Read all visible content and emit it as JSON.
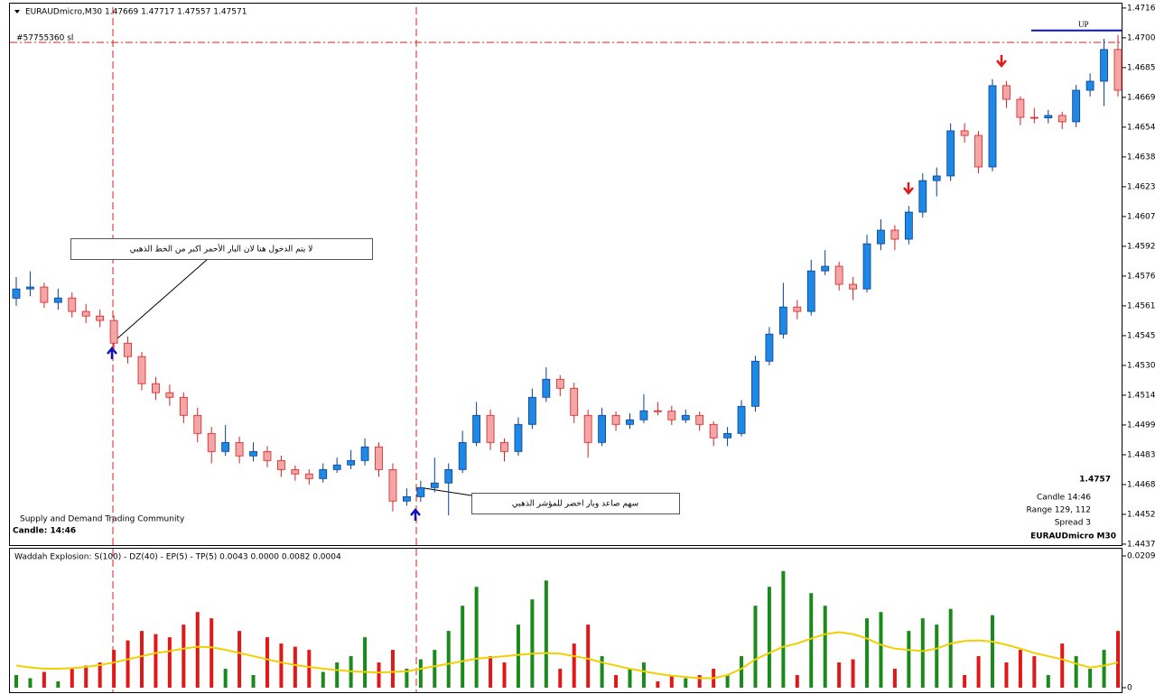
{
  "chart_data": {
    "type": "candlestick",
    "header": "EURAUDmicro,M30  1.47669 1.47717 1.47557 1.47571",
    "order_label": "#57755360 sl",
    "signal_text": "UP",
    "annotations": [
      "لا يتم الدخول هنا لان البار الأحمر اكبر من الخط الذهبي",
      "سهم صاعد وبار اخضر للمؤشر الذهبي"
    ],
    "watermark": "Supply and Demand Trading Community",
    "candle_timer": "Candle:  14:46",
    "info": {
      "price": "1.4757",
      "candle": "Candle  14:46",
      "range": "Range   129, 112",
      "spread": "Spread  3",
      "symbol": "EURAUDmicro   M30"
    },
    "up_color": "#1e88e5",
    "down_color": "#f4a6a6",
    "sl_level": 1.46981,
    "sl_color": "#d62020",
    "target_level": 1.47043,
    "target_color": "#1010c0",
    "ylim": [
      1.44365,
      1.47183
    ],
    "yticks": [
      {
        "value": 1.4716,
        "label": "1.47160"
      },
      {
        "value": 1.47005,
        "label": "1.47005"
      },
      {
        "value": 1.4685,
        "label": "1.46850"
      },
      {
        "value": 1.46695,
        "label": "1.46695"
      },
      {
        "value": 1.4654,
        "label": "1.46540"
      },
      {
        "value": 1.46385,
        "label": "1.46385"
      },
      {
        "value": 1.4623,
        "label": "1.46230"
      },
      {
        "value": 1.46075,
        "label": "1.46075"
      },
      {
        "value": 1.4592,
        "label": "1.45920"
      },
      {
        "value": 1.45765,
        "label": "1.45765"
      },
      {
        "value": 1.4561,
        "label": "1.45610"
      },
      {
        "value": 1.45455,
        "label": "1.45455"
      },
      {
        "value": 1.453,
        "label": "1.45300"
      },
      {
        "value": 1.45145,
        "label": "1.45145"
      },
      {
        "value": 1.4499,
        "label": "1.44990"
      },
      {
        "value": 1.44835,
        "label": "1.44835"
      },
      {
        "value": 1.4468,
        "label": "1.44680"
      },
      {
        "value": 1.44525,
        "label": "1.44525"
      },
      {
        "value": 1.4437,
        "label": "1.44370"
      }
    ],
    "candles": [
      [
        1.4565,
        1.4576,
        1.4561,
        1.45698
      ],
      [
        1.45698,
        1.4579,
        1.4566,
        1.45708
      ],
      [
        1.45708,
        1.4573,
        1.456,
        1.45628
      ],
      [
        1.45628,
        1.457,
        1.4559,
        1.45651
      ],
      [
        1.45651,
        1.4568,
        1.4555,
        1.45581
      ],
      [
        1.45581,
        1.4562,
        1.4552,
        1.45557
      ],
      [
        1.45557,
        1.4559,
        1.455,
        1.45534
      ],
      [
        1.45534,
        1.4556,
        1.4538,
        1.45416
      ],
      [
        1.45416,
        1.4545,
        1.4531,
        1.45346
      ],
      [
        1.45346,
        1.4537,
        1.4517,
        1.45205
      ],
      [
        1.45205,
        1.4524,
        1.4512,
        1.45158
      ],
      [
        1.45158,
        1.452,
        1.4509,
        1.45134
      ],
      [
        1.45134,
        1.4516,
        1.45,
        1.4504
      ],
      [
        1.4504,
        1.4508,
        1.449,
        1.44946
      ],
      [
        1.44946,
        1.4498,
        1.4479,
        1.44852
      ],
      [
        1.44852,
        1.4499,
        1.4483,
        1.44899
      ],
      [
        1.44899,
        1.4493,
        1.4479,
        1.44829
      ],
      [
        1.44829,
        1.449,
        1.448,
        1.44852
      ],
      [
        1.44852,
        1.4488,
        1.4477,
        1.44805
      ],
      [
        1.44805,
        1.4483,
        1.4472,
        1.44758
      ],
      [
        1.44758,
        1.4478,
        1.447,
        1.44735
      ],
      [
        1.44735,
        1.4476,
        1.4468,
        1.44711
      ],
      [
        1.44711,
        1.4479,
        1.4469,
        1.44758
      ],
      [
        1.44758,
        1.4482,
        1.4474,
        1.44782
      ],
      [
        1.44782,
        1.4486,
        1.4476,
        1.44805
      ],
      [
        1.44805,
        1.4492,
        1.4478,
        1.44876
      ],
      [
        1.44876,
        1.449,
        1.4472,
        1.44758
      ],
      [
        1.44758,
        1.4479,
        1.4454,
        1.44594
      ],
      [
        1.44594,
        1.4466,
        1.4457,
        1.44617
      ],
      [
        1.44617,
        1.447,
        1.4459,
        1.44664
      ],
      [
        1.44664,
        1.4482,
        1.4464,
        1.44688
      ],
      [
        1.44688,
        1.4479,
        1.4452,
        1.44758
      ],
      [
        1.44758,
        1.4496,
        1.4474,
        1.44899
      ],
      [
        1.44899,
        1.4511,
        1.4488,
        1.4504
      ],
      [
        1.4504,
        1.4507,
        1.4486,
        1.44899
      ],
      [
        1.44899,
        1.4492,
        1.448,
        1.44852
      ],
      [
        1.44852,
        1.4503,
        1.4483,
        1.44993
      ],
      [
        1.44993,
        1.4518,
        1.4497,
        1.45134
      ],
      [
        1.45134,
        1.4529,
        1.4511,
        1.45228
      ],
      [
        1.45228,
        1.4525,
        1.4514,
        1.45181
      ],
      [
        1.45181,
        1.4521,
        1.45,
        1.4504
      ],
      [
        1.4504,
        1.4507,
        1.4482,
        1.44899
      ],
      [
        1.44899,
        1.4508,
        1.4488,
        1.4504
      ],
      [
        1.4504,
        1.4506,
        1.4496,
        1.44993
      ],
      [
        1.44993,
        1.4505,
        1.4497,
        1.45017
      ],
      [
        1.45017,
        1.4515,
        1.45,
        1.45064
      ],
      [
        1.45064,
        1.4511,
        1.4504,
        1.45062
      ],
      [
        1.45062,
        1.4509,
        1.4499,
        1.45017
      ],
      [
        1.45017,
        1.4507,
        1.45,
        1.4504
      ],
      [
        1.4504,
        1.4506,
        1.4496,
        1.44993
      ],
      [
        1.44993,
        1.4501,
        1.4488,
        1.44923
      ],
      [
        1.44923,
        1.4498,
        1.4488,
        1.44946
      ],
      [
        1.44946,
        1.4512,
        1.4493,
        1.45087
      ],
      [
        1.45087,
        1.4535,
        1.4506,
        1.45322
      ],
      [
        1.45322,
        1.455,
        1.453,
        1.45463
      ],
      [
        1.45463,
        1.4573,
        1.4544,
        1.45604
      ],
      [
        1.45604,
        1.4564,
        1.4554,
        1.45581
      ],
      [
        1.45581,
        1.4585,
        1.4556,
        1.45792
      ],
      [
        1.45792,
        1.459,
        1.4577,
        1.45816
      ],
      [
        1.45816,
        1.4584,
        1.4569,
        1.45722
      ],
      [
        1.45722,
        1.4576,
        1.4564,
        1.45698
      ],
      [
        1.45698,
        1.4598,
        1.4568,
        1.45933
      ],
      [
        1.45933,
        1.4606,
        1.459,
        1.46004
      ],
      [
        1.46004,
        1.4603,
        1.459,
        1.45957
      ],
      [
        1.45957,
        1.4613,
        1.4593,
        1.46098
      ],
      [
        1.46098,
        1.463,
        1.4607,
        1.46262
      ],
      [
        1.46262,
        1.4633,
        1.4618,
        1.46286
      ],
      [
        1.46286,
        1.4656,
        1.4626,
        1.46521
      ],
      [
        1.46521,
        1.4656,
        1.4646,
        1.46497
      ],
      [
        1.46497,
        1.4652,
        1.463,
        1.46333
      ],
      [
        1.46333,
        1.4679,
        1.4631,
        1.46756
      ],
      [
        1.46756,
        1.4678,
        1.4664,
        1.46685
      ],
      [
        1.46685,
        1.467,
        1.4655,
        1.46591
      ],
      [
        1.46591,
        1.4664,
        1.4656,
        1.46588
      ],
      [
        1.46588,
        1.4663,
        1.4656,
        1.46601
      ],
      [
        1.46601,
        1.4662,
        1.4653,
        1.46568
      ],
      [
        1.46568,
        1.4676,
        1.4654,
        1.46732
      ],
      [
        1.46732,
        1.4682,
        1.467,
        1.46779
      ],
      [
        1.46779,
        1.47,
        1.4665,
        1.46944
      ],
      [
        1.46944,
        1.4702,
        1.467,
        1.46732
      ]
    ],
    "indicator": {
      "label": "Waddah Explosion: S(100) - DZ(40) - EP(5) - TP(5) 0.0043 0.0000 0.0082 0.0004",
      "ylim": [
        0,
        0.0209
      ],
      "yticks": [
        0.0209,
        0
      ],
      "up_color": "#1a8a1a",
      "down_color": "#e01818",
      "line_color": "#f0d000",
      "up_bars": [
        0.002,
        0.0015,
        null,
        0.001,
        null,
        null,
        null,
        null,
        null,
        null,
        null,
        null,
        null,
        null,
        null,
        0.003,
        null,
        0.002,
        null,
        null,
        null,
        null,
        0.0025,
        0.004,
        0.005,
        0.008,
        null,
        null,
        0.003,
        0.0045,
        0.006,
        0.009,
        0.013,
        0.016,
        null,
        null,
        0.01,
        0.014,
        0.017,
        null,
        null,
        null,
        0.005,
        null,
        0.003,
        0.004,
        null,
        null,
        0.0015,
        null,
        null,
        0.002,
        0.005,
        0.013,
        0.016,
        0.0185,
        null,
        0.015,
        0.013,
        null,
        null,
        0.011,
        0.012,
        null,
        0.009,
        0.011,
        0.01,
        0.0125,
        null,
        null,
        0.0115,
        null,
        null,
        null,
        0.002,
        null,
        0.005,
        0.003,
        0.006,
        null
      ],
      "down_bars": [
        null,
        null,
        0.0025,
        null,
        0.003,
        0.0035,
        0.004,
        0.006,
        0.0075,
        0.009,
        0.0085,
        0.008,
        0.01,
        0.012,
        0.011,
        null,
        0.009,
        null,
        0.008,
        0.007,
        0.0065,
        0.006,
        null,
        null,
        null,
        null,
        0.004,
        0.006,
        null,
        null,
        null,
        null,
        null,
        null,
        0.005,
        0.004,
        null,
        null,
        null,
        0.003,
        0.007,
        0.01,
        null,
        0.002,
        null,
        null,
        0.001,
        0.002,
        null,
        0.002,
        0.003,
        null,
        null,
        null,
        null,
        null,
        0.002,
        null,
        null,
        0.004,
        0.0045,
        null,
        null,
        0.003,
        null,
        null,
        null,
        null,
        0.002,
        0.005,
        null,
        0.004,
        0.006,
        0.005,
        null,
        0.007,
        null,
        null,
        null,
        0.009
      ],
      "line": [
        0.0035,
        0.0032,
        0.003,
        0.003,
        0.0031,
        0.0033,
        0.0036,
        0.004,
        0.0045,
        0.005,
        0.0055,
        0.0058,
        0.0062,
        0.0065,
        0.0064,
        0.006,
        0.0055,
        0.005,
        0.0045,
        0.004,
        0.0036,
        0.0033,
        0.003,
        0.0028,
        0.0026,
        0.0025,
        0.0024,
        0.0025,
        0.0026,
        0.003,
        0.0034,
        0.0038,
        0.0042,
        0.0046,
        0.0048,
        0.005,
        0.0052,
        0.0054,
        0.0055,
        0.0054,
        0.005,
        0.0046,
        0.004,
        0.0035,
        0.003,
        0.0026,
        0.0022,
        0.0019,
        0.0017,
        0.0015,
        0.0015,
        0.002,
        0.003,
        0.0045,
        0.0055,
        0.0065,
        0.007,
        0.0078,
        0.0085,
        0.0088,
        0.0085,
        0.0078,
        0.0068,
        0.0062,
        0.006,
        0.0058,
        0.0062,
        0.007,
        0.0074,
        0.0075,
        0.0073,
        0.0068,
        0.0062,
        0.0055,
        0.005,
        0.0045,
        0.0038,
        0.0032,
        0.0035,
        0.004
      ]
    }
  }
}
